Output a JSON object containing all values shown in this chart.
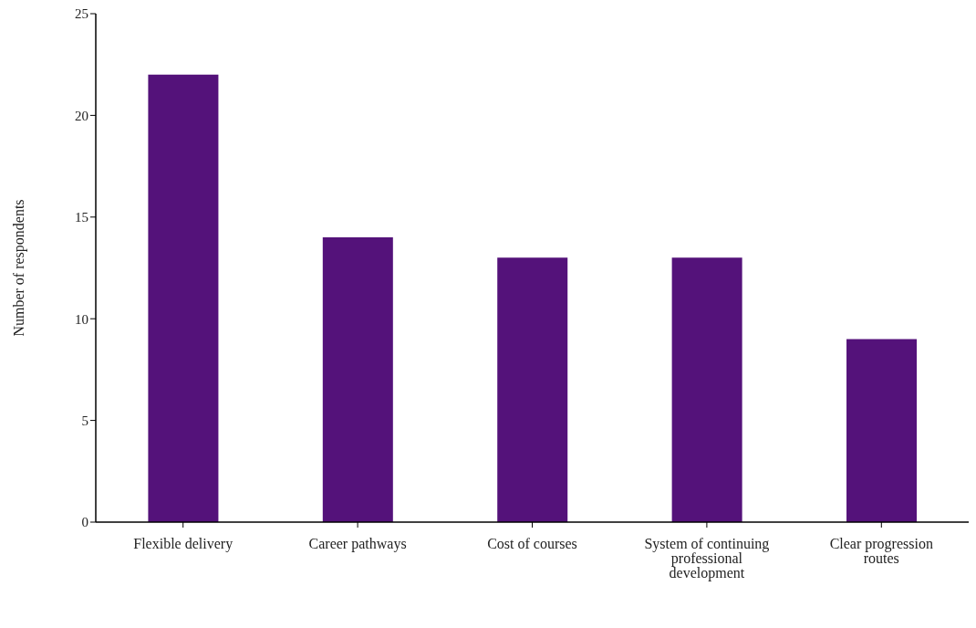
{
  "chart_data": {
    "type": "bar",
    "ylabel": "Number of respondents",
    "categories": [
      "Flexible delivery",
      "Career pathways",
      "Cost of courses",
      "System of continuing professional development",
      "Clear progression routes"
    ],
    "values": [
      22,
      14,
      13,
      13,
      9
    ],
    "color": "#54127a",
    "ylim": [
      0,
      25
    ],
    "yticks": [
      0,
      5,
      10,
      15,
      20,
      25
    ],
    "grid": false,
    "legend": false
  }
}
